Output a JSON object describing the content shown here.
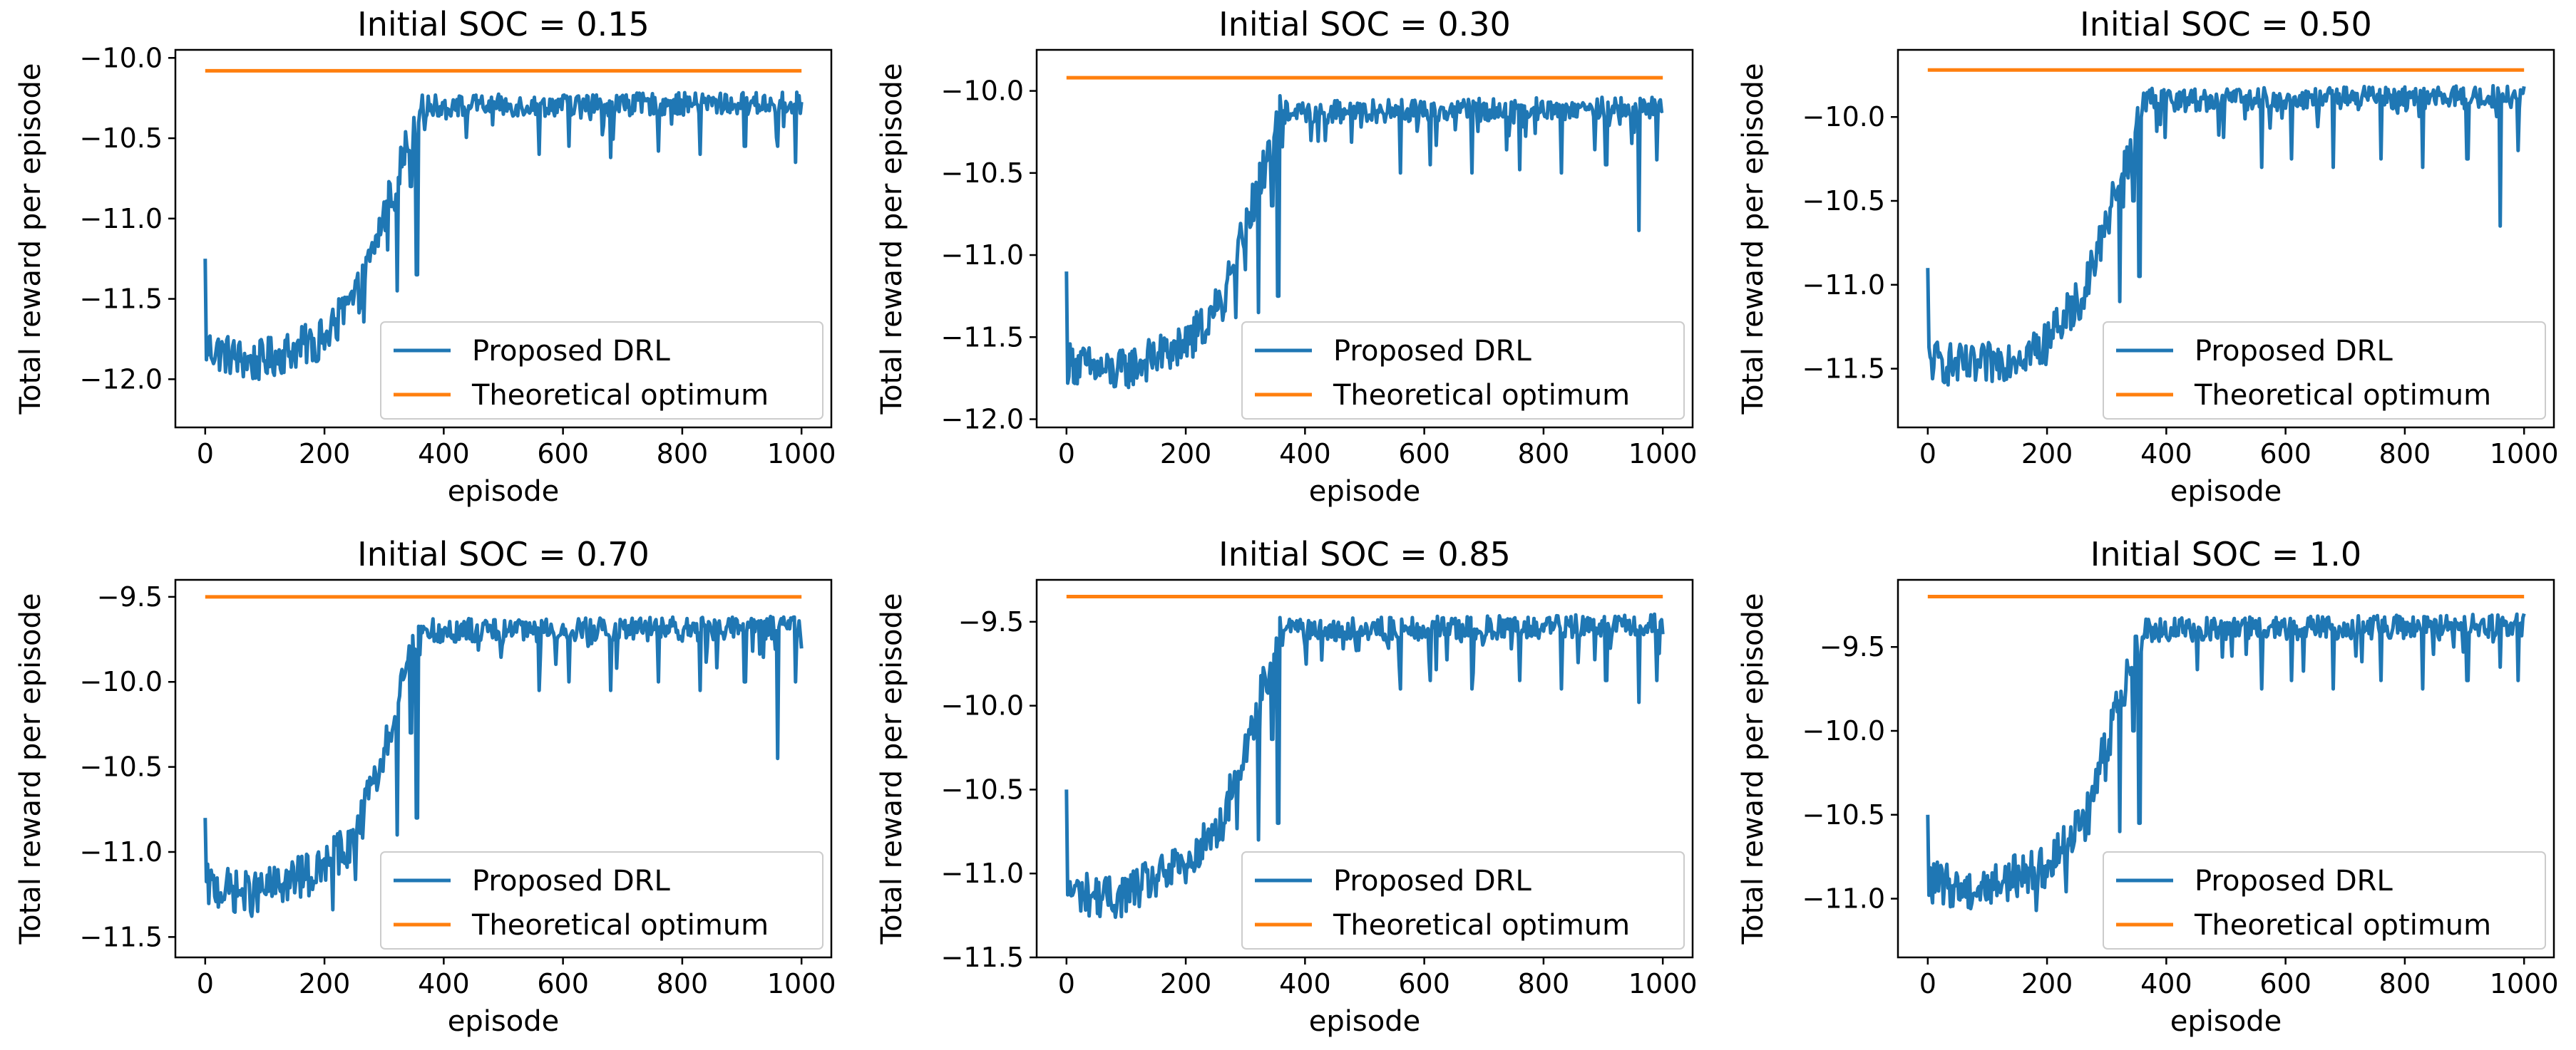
{
  "chart_data": [
    {
      "type": "line",
      "title": "Initial SOC = 0.15",
      "xlabel": "episode",
      "ylabel": "Total reward per episode",
      "xlim": [
        -50,
        1050
      ],
      "ylim": [
        -12.3,
        -9.95
      ],
      "xticks": [
        0,
        200,
        400,
        600,
        800,
        1000
      ],
      "xtick_labels": [
        "0",
        "200",
        "400",
        "600",
        "800",
        "1000"
      ],
      "yticks": [
        -12.0,
        -11.5,
        -11.0,
        -10.5,
        -10.0
      ],
      "ytick_labels": [
        "−12.0",
        "−11.5",
        "−11.0",
        "−10.5",
        "−10.0"
      ],
      "series": [
        {
          "name": "Proposed DRL",
          "color": "#1f77b4",
          "trend": {
            "x": [
              0,
              80,
              200,
              260,
              320,
              360,
              1000
            ],
            "y": [
              -11.8,
              -11.9,
              -11.75,
              -11.45,
              -10.75,
              -10.3,
              -10.28
            ]
          },
          "noise": 0.1,
          "start_value": -11.25,
          "dips": [
            [
              322,
              -11.45
            ],
            [
              345,
              -10.8
            ],
            [
              355,
              -11.35
            ],
            [
              560,
              -10.6
            ],
            [
              610,
              -10.55
            ],
            [
              680,
              -10.62
            ],
            [
              760,
              -10.58
            ],
            [
              830,
              -10.6
            ],
            [
              905,
              -10.55
            ],
            [
              960,
              -10.55
            ],
            [
              990,
              -10.65
            ]
          ]
        },
        {
          "name": "Theoretical optimum",
          "color": "#ff7f0e",
          "x": [
            0,
            1000
          ],
          "y": [
            -10.08,
            -10.08
          ]
        }
      ],
      "legend": "lower-right"
    },
    {
      "type": "line",
      "title": "Initial SOC = 0.30",
      "xlabel": "episode",
      "ylabel": "Total reward per episode",
      "xlim": [
        -50,
        1050
      ],
      "ylim": [
        -12.05,
        -9.75
      ],
      "xticks": [
        0,
        200,
        400,
        600,
        800,
        1000
      ],
      "xtick_labels": [
        "0",
        "200",
        "400",
        "600",
        "800",
        "1000"
      ],
      "yticks": [
        -12.0,
        -11.5,
        -11.0,
        -10.5,
        -10.0
      ],
      "ytick_labels": [
        "−12.0",
        "−11.5",
        "−11.0",
        "−10.5",
        "−10.0"
      ],
      "series": [
        {
          "name": "Proposed DRL",
          "color": "#1f77b4",
          "trend": {
            "x": [
              0,
              80,
              200,
              260,
              320,
              360,
              1000
            ],
            "y": [
              -11.65,
              -11.72,
              -11.55,
              -11.3,
              -10.6,
              -10.13,
              -10.1
            ]
          },
          "noise": 0.1,
          "start_value": -11.1,
          "dips": [
            [
              322,
              -11.35
            ],
            [
              345,
              -10.7
            ],
            [
              355,
              -11.25
            ],
            [
              560,
              -10.5
            ],
            [
              610,
              -10.45
            ],
            [
              680,
              -10.5
            ],
            [
              760,
              -10.48
            ],
            [
              830,
              -10.5
            ],
            [
              905,
              -10.45
            ],
            [
              960,
              -10.85
            ],
            [
              990,
              -10.42
            ]
          ]
        },
        {
          "name": "Theoretical optimum",
          "color": "#ff7f0e",
          "x": [
            0,
            1000
          ],
          "y": [
            -9.92,
            -9.92
          ]
        }
      ],
      "legend": "lower-right"
    },
    {
      "type": "line",
      "title": "Initial SOC = 0.50",
      "xlabel": "episode",
      "ylabel": "Total reward per episode",
      "xlim": [
        -50,
        1050
      ],
      "ylim": [
        -11.85,
        -9.6
      ],
      "xticks": [
        0,
        200,
        400,
        600,
        800,
        1000
      ],
      "xtick_labels": [
        "0",
        "200",
        "400",
        "600",
        "800",
        "1000"
      ],
      "yticks": [
        -11.5,
        -11.0,
        -10.5,
        -10.0
      ],
      "ytick_labels": [
        "−11.5",
        "−11.0",
        "−10.5",
        "−10.0"
      ],
      "series": [
        {
          "name": "Proposed DRL",
          "color": "#1f77b4",
          "trend": {
            "x": [
              0,
              80,
              200,
              260,
              320,
              360,
              1000
            ],
            "y": [
              -11.45,
              -11.5,
              -11.35,
              -11.05,
              -10.4,
              -9.9,
              -9.88
            ]
          },
          "noise": 0.1,
          "start_value": -10.9,
          "dips": [
            [
              322,
              -11.1
            ],
            [
              345,
              -10.5
            ],
            [
              355,
              -10.95
            ],
            [
              560,
              -10.3
            ],
            [
              610,
              -10.25
            ],
            [
              680,
              -10.3
            ],
            [
              760,
              -10.25
            ],
            [
              830,
              -10.3
            ],
            [
              905,
              -10.25
            ],
            [
              960,
              -10.65
            ],
            [
              990,
              -10.2
            ]
          ]
        },
        {
          "name": "Theoretical optimum",
          "color": "#ff7f0e",
          "x": [
            0,
            1000
          ],
          "y": [
            -9.72,
            -9.72
          ]
        }
      ],
      "legend": "lower-right"
    },
    {
      "type": "line",
      "title": "Initial SOC = 0.70",
      "xlabel": "episode",
      "ylabel": "Total reward per episode",
      "xlim": [
        -50,
        1050
      ],
      "ylim": [
        -11.62,
        -9.4
      ],
      "xticks": [
        0,
        200,
        400,
        600,
        800,
        1000
      ],
      "xtick_labels": [
        "0",
        "200",
        "400",
        "600",
        "800",
        "1000"
      ],
      "yticks": [
        -11.5,
        -11.0,
        -10.5,
        -10.0,
        -9.5
      ],
      "ytick_labels": [
        "−11.5",
        "−11.0",
        "−10.5",
        "−10.0",
        "−9.5"
      ],
      "series": [
        {
          "name": "Proposed DRL",
          "color": "#1f77b4",
          "trend": {
            "x": [
              0,
              80,
              200,
              260,
              320,
              360,
              1000
            ],
            "y": [
              -11.2,
              -11.25,
              -11.1,
              -10.85,
              -10.15,
              -9.7,
              -9.68
            ]
          },
          "noise": 0.1,
          "start_value": -10.8,
          "dips": [
            [
              322,
              -10.9
            ],
            [
              345,
              -10.3
            ],
            [
              355,
              -10.8
            ],
            [
              560,
              -10.05
            ],
            [
              610,
              -10.0
            ],
            [
              680,
              -10.05
            ],
            [
              760,
              -10.0
            ],
            [
              830,
              -10.05
            ],
            [
              905,
              -10.0
            ],
            [
              960,
              -10.45
            ],
            [
              990,
              -10.0
            ]
          ]
        },
        {
          "name": "Theoretical optimum",
          "color": "#ff7f0e",
          "x": [
            0,
            1000
          ],
          "y": [
            -9.5,
            -9.5
          ]
        }
      ],
      "legend": "lower-right"
    },
    {
      "type": "line",
      "title": "Initial SOC = 0.85",
      "xlabel": "episode",
      "ylabel": "Total reward per episode",
      "xlim": [
        -50,
        1050
      ],
      "ylim": [
        -11.5,
        -9.25
      ],
      "xticks": [
        0,
        200,
        400,
        600,
        800,
        1000
      ],
      "xtick_labels": [
        "0",
        "200",
        "400",
        "600",
        "800",
        "1000"
      ],
      "yticks": [
        -11.5,
        -11.0,
        -10.5,
        -10.0,
        -9.5
      ],
      "ytick_labels": [
        "−11.5",
        "−11.0",
        "−10.5",
        "−10.0",
        "−9.5"
      ],
      "series": [
        {
          "name": "Proposed DRL",
          "color": "#1f77b4",
          "trend": {
            "x": [
              0,
              80,
              200,
              260,
              320,
              360,
              1000
            ],
            "y": [
              -11.1,
              -11.15,
              -10.95,
              -10.7,
              -10.0,
              -9.55,
              -9.52
            ]
          },
          "noise": 0.1,
          "start_value": -10.5,
          "dips": [
            [
              322,
              -10.8
            ],
            [
              345,
              -10.2
            ],
            [
              355,
              -10.7
            ],
            [
              560,
              -9.9
            ],
            [
              610,
              -9.85
            ],
            [
              680,
              -9.9
            ],
            [
              760,
              -9.85
            ],
            [
              830,
              -9.9
            ],
            [
              905,
              -9.85
            ],
            [
              960,
              -9.98
            ],
            [
              990,
              -9.85
            ]
          ]
        },
        {
          "name": "Theoretical optimum",
          "color": "#ff7f0e",
          "x": [
            0,
            1000
          ],
          "y": [
            -9.35,
            -9.35
          ]
        }
      ],
      "legend": "lower-right"
    },
    {
      "type": "line",
      "title": "Initial SOC = 1.0",
      "xlabel": "episode",
      "ylabel": "Total reward per episode",
      "xlim": [
        -50,
        1050
      ],
      "ylim": [
        -11.35,
        -9.1
      ],
      "xticks": [
        0,
        200,
        400,
        600,
        800,
        1000
      ],
      "xtick_labels": [
        "0",
        "200",
        "400",
        "600",
        "800",
        "1000"
      ],
      "yticks": [
        -11.0,
        -10.5,
        -10.0,
        -9.5
      ],
      "ytick_labels": [
        "−11.0",
        "−10.5",
        "−10.0",
        "−9.5"
      ],
      "series": [
        {
          "name": "Proposed DRL",
          "color": "#1f77b4",
          "trend": {
            "x": [
              0,
              80,
              200,
              260,
              320,
              360,
              1000
            ],
            "y": [
              -10.9,
              -10.95,
              -10.8,
              -10.55,
              -9.85,
              -9.4,
              -9.37
            ]
          },
          "noise": 0.1,
          "start_value": -10.5,
          "dips": [
            [
              322,
              -10.6
            ],
            [
              345,
              -10.0
            ],
            [
              355,
              -10.55
            ],
            [
              560,
              -9.75
            ],
            [
              610,
              -9.7
            ],
            [
              680,
              -9.75
            ],
            [
              760,
              -9.7
            ],
            [
              830,
              -9.75
            ],
            [
              905,
              -9.7
            ],
            [
              960,
              -9.62
            ],
            [
              990,
              -9.7
            ]
          ]
        },
        {
          "name": "Theoretical optimum",
          "color": "#ff7f0e",
          "x": [
            0,
            1000
          ],
          "y": [
            -9.2,
            -9.2
          ]
        }
      ],
      "legend": "lower-right"
    }
  ]
}
